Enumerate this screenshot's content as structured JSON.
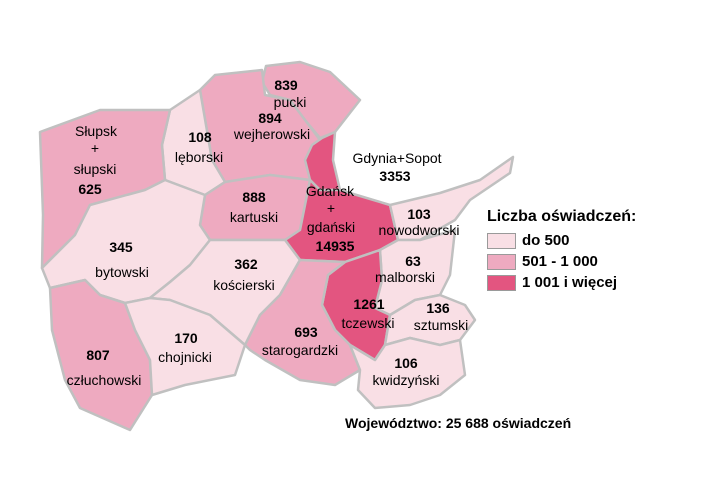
{
  "colors": {
    "low": "#f9dfe5",
    "mid": "#eeaac0",
    "high": "#e35580",
    "border": "#c0c0c0"
  },
  "legend": {
    "title": "Liczba oświadczeń:",
    "items": [
      {
        "label": "do 500",
        "class": "low"
      },
      {
        "label": "501 - 1 000",
        "class": "mid"
      },
      {
        "label": "1 001 i więcej",
        "class": "high"
      }
    ]
  },
  "total": "Województwo: 25 688 oświadczeń",
  "regions": {
    "pucki": {
      "value": "839",
      "name": "pucki",
      "class": "mid"
    },
    "wejherowski": {
      "value": "894",
      "name": "wejherowski",
      "class": "mid"
    },
    "leborski": {
      "value": "108",
      "name": "lęborski",
      "class": "low"
    },
    "slupski": {
      "line1": "Słupsk",
      "line2": "+",
      "line3": "słupski",
      "value": "625",
      "class": "mid"
    },
    "gdynia": {
      "name": "Gdynia+Sopot",
      "value": "3353",
      "class": "high"
    },
    "kartuski": {
      "value": "888",
      "name": "kartuski",
      "class": "mid"
    },
    "gdansk": {
      "line1": "Gdańsk",
      "line2": "+",
      "name": "gdański",
      "value": "14935",
      "class": "high"
    },
    "nowodworski": {
      "value": "103",
      "name": "nowodworski",
      "class": "low"
    },
    "bytowski": {
      "value": "345",
      "name": "bytowski",
      "class": "low"
    },
    "koscierski": {
      "value": "362",
      "name": "kościerski",
      "class": "low"
    },
    "malborski": {
      "value": "63",
      "name": "malborski",
      "class": "low"
    },
    "tczewski": {
      "value": "1261",
      "name": "tczewski",
      "class": "high"
    },
    "sztumski": {
      "value": "136",
      "name": "sztumski",
      "class": "low"
    },
    "czluchowski": {
      "value": "807",
      "name": "człuchowski",
      "class": "mid"
    },
    "chojnicki": {
      "value": "170",
      "name": "chojnicki",
      "class": "low"
    },
    "starogardzki": {
      "value": "693",
      "name": "starogardzki",
      "class": "mid"
    },
    "kwidzynski": {
      "value": "106",
      "name": "kwidzyński",
      "class": "low"
    }
  }
}
